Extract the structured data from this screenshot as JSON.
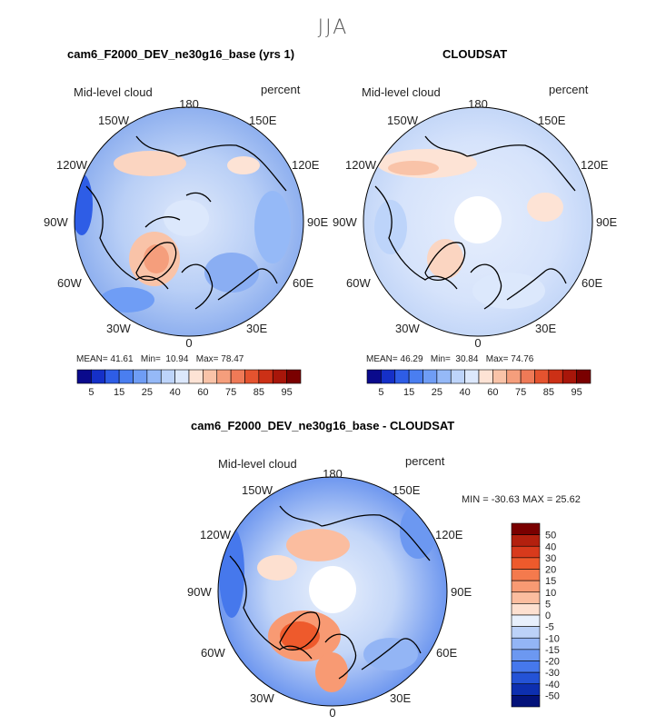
{
  "season": "JJA",
  "panels": [
    {
      "title": "cam6_F2000_DEV_ne30g16_base (yrs 1)",
      "variable": "Mid-level cloud",
      "units": "percent",
      "stats": {
        "mean_label": "MEAN=",
        "mean": "41.61",
        "min_label": "Min=",
        "min": "10.94",
        "max_label": "Max=",
        "max": "78.47"
      }
    },
    {
      "title": "CLOUDSAT",
      "variable": "Mid-level cloud",
      "units": "percent",
      "stats": {
        "mean_label": "MEAN=",
        "mean": "46.29",
        "min_label": "Min=",
        "min": "30.84",
        "max_label": "Max=",
        "max": "74.76"
      }
    },
    {
      "title": "cam6_F2000_DEV_ne30g16_base - CLOUDSAT",
      "variable": "Mid-level cloud",
      "units": "percent",
      "minmax": "MIN = -30.63 MAX =  25.62"
    }
  ],
  "longitude_labels": {
    "top": "180",
    "upper_left": "150W",
    "upper_right": "150E",
    "left_upper": "120W",
    "right_upper": "120E",
    "left": "90W",
    "right": "90E",
    "left_lower": "60W",
    "right_lower": "60E",
    "lower_left": "30W",
    "lower_right": "30E",
    "bottom": "0"
  },
  "colorbar_abs": {
    "labels": [
      "5",
      "15",
      "25",
      "40",
      "60",
      "75",
      "85",
      "95"
    ],
    "colors": [
      "#0a0a8c",
      "#1530c8",
      "#2e5de6",
      "#4a7ef0",
      "#6f9df5",
      "#95b9f7",
      "#bdd4fa",
      "#dce8fc",
      "#fde3d5",
      "#f9c3a8",
      "#f59e7c",
      "#ef7a57",
      "#e5532f",
      "#cc3016",
      "#a8160a",
      "#7a0000"
    ]
  },
  "colorbar_diff": {
    "labels": [
      "50",
      "40",
      "30",
      "20",
      "15",
      "10",
      "5",
      "0",
      "-5",
      "-10",
      "-15",
      "-20",
      "-30",
      "-40",
      "-50"
    ],
    "colors": [
      "#7a0000",
      "#b3200e",
      "#d83a1c",
      "#ee5a2c",
      "#f47a4d",
      "#f89a73",
      "#fbbd9f",
      "#fde0d0",
      "#e8f0fc",
      "#bcd2f8",
      "#93b5f5",
      "#6c98f1",
      "#4678ec",
      "#2453d6",
      "#0d2fb0",
      "#03127a"
    ]
  },
  "chart_data": {
    "type": "polar-contour-maps",
    "title": "JJA",
    "projection": "North polar stereographic",
    "variable": "Mid-level cloud",
    "units": "percent",
    "maps": [
      {
        "name": "cam6_F2000_DEV_ne30g16_base (yrs 1)",
        "mean": 41.61,
        "min": 10.94,
        "max": 78.47,
        "scale": [
          5,
          15,
          25,
          40,
          60,
          75,
          85,
          95
        ]
      },
      {
        "name": "CLOUDSAT",
        "mean": 46.29,
        "min": 30.84,
        "max": 74.76,
        "scale": [
          5,
          15,
          25,
          40,
          60,
          75,
          85,
          95
        ]
      },
      {
        "name": "cam6_F2000_DEV_ne30g16_base - CLOUDSAT",
        "min": -30.63,
        "max": 25.62,
        "scale": [
          50,
          40,
          30,
          20,
          15,
          10,
          5,
          0,
          -5,
          -10,
          -15,
          -20,
          -30,
          -40,
          -50
        ]
      }
    ]
  }
}
